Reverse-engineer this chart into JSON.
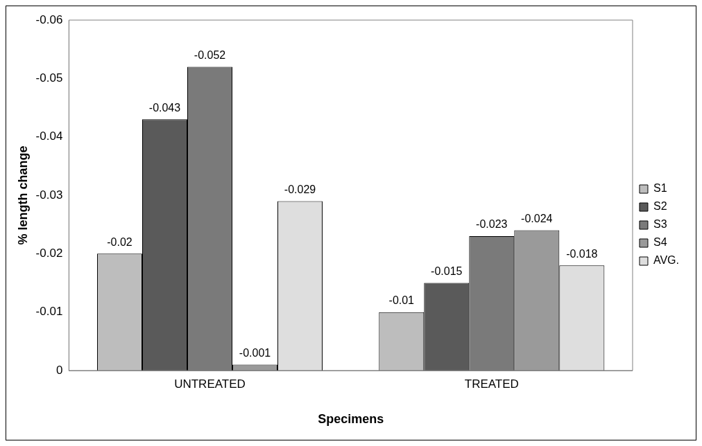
{
  "chart_data": {
    "type": "bar",
    "xlabel": "Specimens",
    "ylabel": "% length change",
    "categories": [
      "UNTREATED",
      "TREATED"
    ],
    "series": [
      {
        "name": "S1",
        "color": "#bdbdbd",
        "values": [
          -0.02,
          -0.01
        ]
      },
      {
        "name": "S2",
        "color": "#5a5a5a",
        "values": [
          -0.043,
          -0.015
        ]
      },
      {
        "name": "S3",
        "color": "#7a7a7a",
        "values": [
          -0.052,
          -0.023
        ]
      },
      {
        "name": "S4",
        "color": "#9a9a9a",
        "values": [
          -0.001,
          -0.024
        ]
      },
      {
        "name": "AVG.",
        "color": "#dedede",
        "values": [
          -0.029,
          -0.018
        ]
      }
    ],
    "ylim": [
      0,
      -0.06
    ],
    "yticks": [
      0,
      -0.01,
      -0.02,
      -0.03,
      -0.04,
      -0.05,
      -0.06
    ],
    "grid": false,
    "legend": "right",
    "data_labels": true
  }
}
